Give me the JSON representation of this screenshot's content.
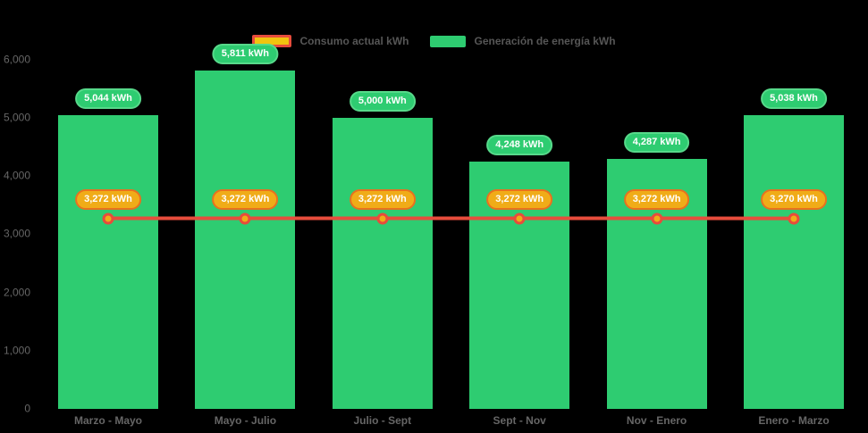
{
  "chart": {
    "background": "#000000",
    "axis_text_color": "#666666",
    "legend_text_color": "#565656",
    "legend": {
      "items": [
        {
          "id": "consumo",
          "label": "Consumo actual kWh",
          "swatch_fill": "#F1C40F",
          "swatch_border": "#E74C3C"
        },
        {
          "id": "generacion",
          "label": "Generación de energía kWh",
          "swatch_fill": "#2ECC71",
          "swatch_border": "#2ECC71"
        }
      ]
    }
  },
  "chart_data": {
    "type": "bar",
    "title": "",
    "xlabel": "",
    "ylabel": "",
    "grid": false,
    "legend_position": "top-center",
    "categories": [
      "Marzo - Mayo",
      "Mayo - Julio",
      "Julio - Sept",
      "Sept - Nov",
      "Nov - Enero",
      "Enero - Marzo"
    ],
    "ylim": [
      0,
      6000
    ],
    "yticks": [
      {
        "value": 0,
        "label": "0"
      },
      {
        "value": 1000,
        "label": "1,000"
      },
      {
        "value": 2000,
        "label": "2,000"
      },
      {
        "value": 3000,
        "label": "3,000"
      },
      {
        "value": 4000,
        "label": "4,000"
      },
      {
        "value": 5000,
        "label": "5,000"
      },
      {
        "value": 6000,
        "label": "6,000"
      }
    ],
    "series": [
      {
        "name": "Generación de energía kWh",
        "type": "bar",
        "color": "#2ECC71",
        "label_fill": "#2ECC71",
        "label_border": "#57D98A",
        "label_text_color": "#FFFFFF",
        "values": [
          5044,
          5811,
          5000,
          4248,
          4287,
          5038
        ],
        "labels": [
          "5,044 kWh",
          "5,811 kWh",
          "5,000 kWh",
          "4,248 kWh",
          "4,287 kWh",
          "5,038 kWh"
        ]
      },
      {
        "name": "Consumo actual kWh",
        "type": "line",
        "color": "#E74C3C",
        "marker_fill": "#F0AC18",
        "marker_border": "#E74C3C",
        "label_fill": "#F0AC18",
        "label_border": "#E8711F",
        "label_text_color": "#FFFFFF",
        "values": [
          3272,
          3272,
          3272,
          3272,
          3272,
          3270
        ],
        "labels": [
          "3,272 kWh",
          "3,272 kWh",
          "3,272 kWh",
          "3,272 kWh",
          "3,272 kWh",
          "3,270 kWh"
        ]
      }
    ]
  }
}
